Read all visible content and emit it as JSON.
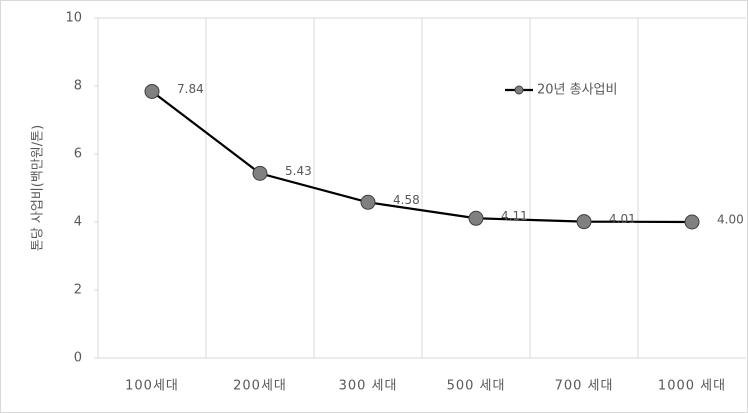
{
  "chart_data": {
    "type": "line",
    "y_label": "톤당 사업비(백만원/톤)",
    "categories": [
      "100세대",
      "200세대",
      "300 세대",
      "500 세대",
      "700 세대",
      "1000 세대"
    ],
    "series": [
      {
        "name": "20년 총사업비",
        "color": "#000000",
        "marker_color": "#808080",
        "values": [
          7.84,
          5.43,
          4.58,
          4.11,
          4.01,
          4.0
        ],
        "value_labels": [
          "7.84",
          "5.43",
          "4.58",
          "4.11",
          "4.01",
          "4.00"
        ]
      }
    ],
    "ylim": [
      0,
      10
    ],
    "yticks": [
      0,
      2,
      4,
      6,
      8,
      10
    ],
    "legend": "upper right"
  }
}
